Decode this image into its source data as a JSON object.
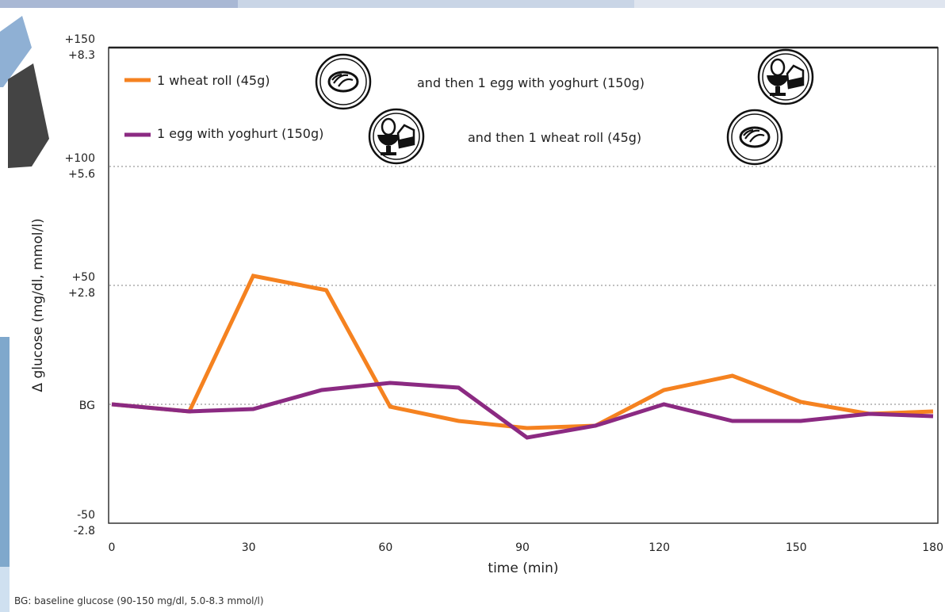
{
  "chart_data": {
    "type": "line",
    "title": "",
    "xlabel": "time (min)",
    "ylabel": "Δ glucose (mg/dl, mmol/l)",
    "xlim": [
      0,
      180
    ],
    "ylim": [
      -50,
      150
    ],
    "x_ticks": [
      "0",
      "30",
      "60",
      "90",
      "120",
      "150",
      "180"
    ],
    "y_ticks": [
      {
        "value": 150,
        "label_top": "+150",
        "label_bottom": "+8.3"
      },
      {
        "value": 100,
        "label_top": "+100",
        "label_bottom": "+5.6"
      },
      {
        "value": 50,
        "label_top": "+50",
        "label_bottom": "+2.8"
      },
      {
        "value": 0,
        "label_top": "BG",
        "label_bottom": ""
      },
      {
        "value": -50,
        "label_top": "-50",
        "label_bottom": "-2.8"
      }
    ],
    "grid": "dotted horizontal at +100, +50 and BG",
    "legend_position": "top",
    "series": [
      {
        "name": "1 wheat roll (45g)",
        "color": "#f58220",
        "points": [
          [
            0,
            0
          ],
          [
            17,
            -3
          ],
          [
            31,
            54
          ],
          [
            47,
            48
          ],
          [
            61,
            -1
          ],
          [
            76,
            -7
          ],
          [
            91,
            -10
          ],
          [
            106,
            -9
          ],
          [
            121,
            6
          ],
          [
            136,
            12
          ],
          [
            151,
            1
          ],
          [
            166,
            -4
          ],
          [
            180,
            -3
          ]
        ],
        "annotation": "and then 1 egg with yoghurt (150g)",
        "icons": [
          "bread-icon",
          "egg-yoghurt-icon"
        ]
      },
      {
        "name": "1 egg with yoghurt (150g)",
        "color": "#8b2a82",
        "points": [
          [
            0,
            0
          ],
          [
            17,
            -3
          ],
          [
            31,
            -2
          ],
          [
            46,
            6
          ],
          [
            61,
            9
          ],
          [
            76,
            7
          ],
          [
            91,
            -14
          ],
          [
            106,
            -9
          ],
          [
            121,
            0
          ],
          [
            136,
            -7
          ],
          [
            151,
            -7
          ],
          [
            166,
            -4
          ],
          [
            180,
            -5
          ]
        ],
        "annotation": "and then 1 wheat roll (45g)",
        "icons": [
          "egg-yoghurt-icon",
          "bread-icon"
        ]
      }
    ],
    "footnote": "BG: baseline glucose (90-150 mg/dl, 5.0-8.3 mmol/l)"
  },
  "colors": {
    "axis": "#333333",
    "grid": "#9a9a9a",
    "background_blue": "#7fa8cc"
  }
}
